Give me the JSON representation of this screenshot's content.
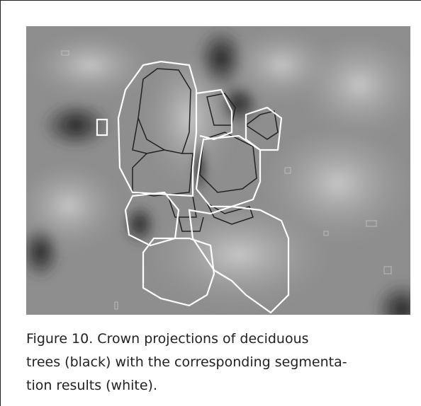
{
  "figure": {
    "caption_lines": [
      "Figure 10. Crown projections of deciduous",
      "trees (black) with the corresponding segmenta-",
      "tion results (white)."
    ]
  }
}
